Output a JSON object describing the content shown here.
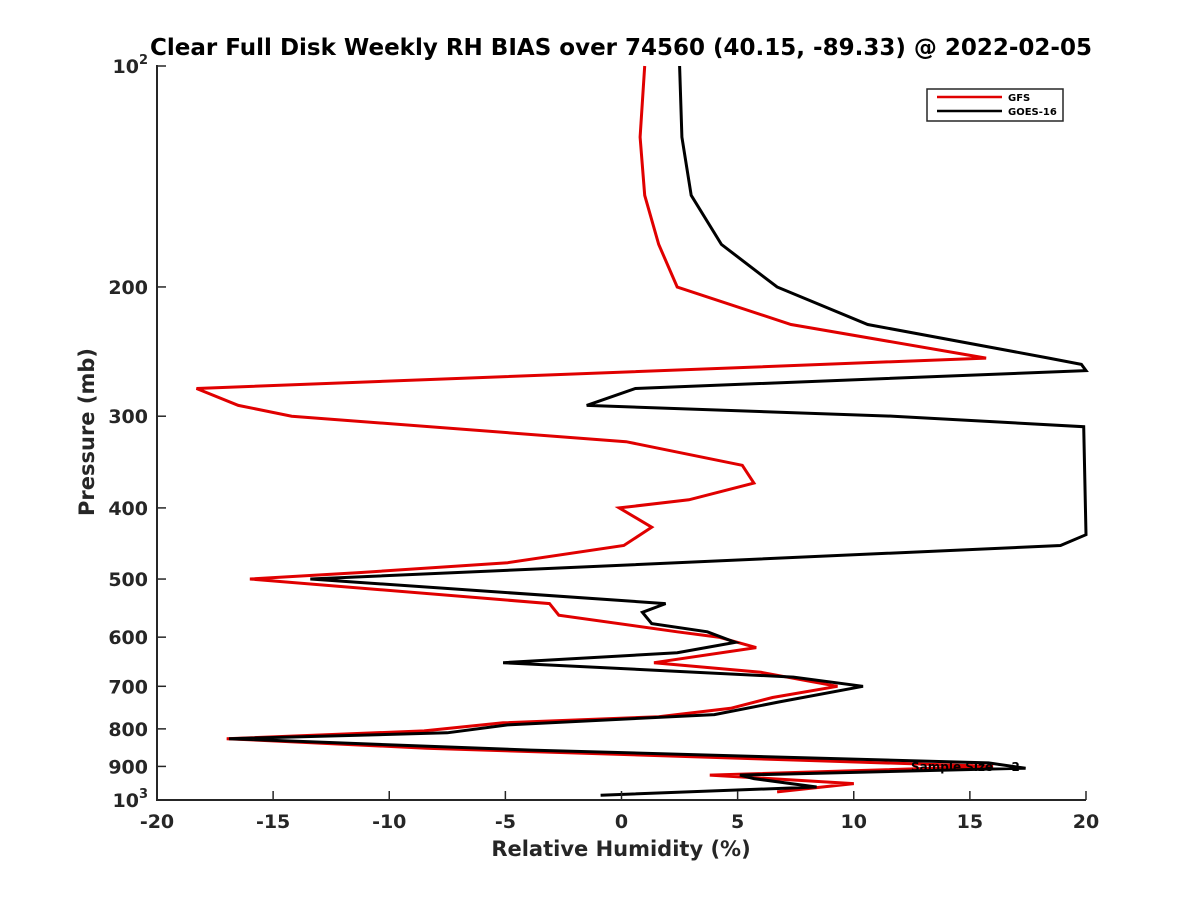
{
  "chart_data": {
    "type": "line",
    "title": "Clear Full Disk Weekly RH BIAS over 74560 (40.15, -89.33) @ 2022-02-05",
    "xlabel": "Relative Humidity (%)",
    "ylabel": "Pressure (mb)",
    "xlim": [
      -20,
      20
    ],
    "ylim": [
      100,
      1000
    ],
    "y_scale": "log",
    "y_reversed": true,
    "xticks": [
      "-20",
      "-15",
      "-10",
      "-5",
      "0",
      "5",
      "10",
      "15",
      "20"
    ],
    "yticks": [
      {
        "value": 100,
        "base": "10",
        "exp": "2"
      },
      {
        "value": 200,
        "label": "200"
      },
      {
        "value": 300,
        "label": "300"
      },
      {
        "value": 400,
        "label": "400"
      },
      {
        "value": 500,
        "label": "500"
      },
      {
        "value": 600,
        "label": "600"
      },
      {
        "value": 700,
        "label": "700"
      },
      {
        "value": 800,
        "label": "800"
      },
      {
        "value": 900,
        "label": "900"
      },
      {
        "value": 1000,
        "base": "10",
        "exp": "3"
      }
    ],
    "grid": false,
    "legend_position": "top-right",
    "annotation": "Sample Size = 2",
    "series": [
      {
        "name": "GFS",
        "color": "#e00000",
        "points": [
          [
            1.0,
            100
          ],
          [
            0.8,
            125
          ],
          [
            1.0,
            150
          ],
          [
            1.6,
            175
          ],
          [
            2.4,
            200
          ],
          [
            7.3,
            225
          ],
          [
            15.7,
            250
          ],
          [
            -18.3,
            275
          ],
          [
            -16.5,
            290
          ],
          [
            -14.2,
            300
          ],
          [
            0.2,
            325
          ],
          [
            5.2,
            350
          ],
          [
            5.7,
            370
          ],
          [
            2.9,
            390
          ],
          [
            -0.1,
            400
          ],
          [
            1.3,
            425
          ],
          [
            0.1,
            450
          ],
          [
            -4.9,
            475
          ],
          [
            -11.3,
            490
          ],
          [
            -16.0,
            500
          ],
          [
            -3.1,
            540
          ],
          [
            -2.7,
            560
          ],
          [
            2.4,
            590
          ],
          [
            4.2,
            600
          ],
          [
            5.8,
            620
          ],
          [
            1.4,
            650
          ],
          [
            6.0,
            670
          ],
          [
            8.2,
            690
          ],
          [
            9.3,
            700
          ],
          [
            6.5,
            725
          ],
          [
            4.7,
            750
          ],
          [
            1.6,
            770
          ],
          [
            -5.1,
            785
          ],
          [
            -8.5,
            805
          ],
          [
            -17.0,
            825
          ],
          [
            -8.4,
            850
          ],
          [
            16.0,
            900
          ],
          [
            3.8,
            925
          ],
          [
            10.0,
            950
          ],
          [
            6.7,
            975
          ]
        ]
      },
      {
        "name": "GOES-16",
        "color": "#000000",
        "points": [
          [
            2.5,
            100
          ],
          [
            2.6,
            125
          ],
          [
            3.0,
            150
          ],
          [
            4.3,
            175
          ],
          [
            6.7,
            200
          ],
          [
            10.6,
            225
          ],
          [
            18.4,
            250
          ],
          [
            19.8,
            255
          ],
          [
            20.0,
            260
          ],
          [
            0.6,
            275
          ],
          [
            -1.5,
            290
          ],
          [
            11.7,
            300
          ],
          [
            19.9,
            310
          ],
          [
            20.0,
            435
          ],
          [
            18.9,
            450
          ],
          [
            -3.9,
            485
          ],
          [
            -13.4,
            500
          ],
          [
            1.9,
            540
          ],
          [
            0.9,
            555
          ],
          [
            1.3,
            575
          ],
          [
            3.7,
            590
          ],
          [
            4.9,
            610
          ],
          [
            2.4,
            630
          ],
          [
            -5.1,
            650
          ],
          [
            7.4,
            680
          ],
          [
            10.4,
            700
          ],
          [
            6.8,
            735
          ],
          [
            4.0,
            765
          ],
          [
            -4.9,
            790
          ],
          [
            -7.5,
            810
          ],
          [
            -16.9,
            825
          ],
          [
            -3.9,
            855
          ],
          [
            15.8,
            890
          ],
          [
            17.4,
            905
          ],
          [
            5.1,
            925
          ],
          [
            5.7,
            935
          ],
          [
            7.3,
            950
          ],
          [
            8.4,
            960
          ],
          [
            -0.9,
            985
          ]
        ]
      }
    ]
  }
}
